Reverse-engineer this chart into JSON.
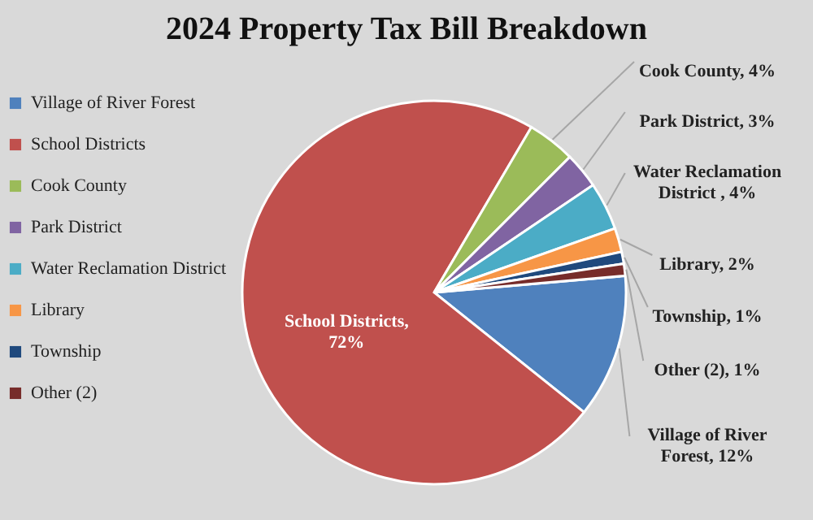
{
  "chart_data": {
    "type": "pie",
    "title": "2024 Property Tax Bill Breakdown",
    "categories": [
      "Village of River Forest",
      "School Districts",
      "Cook County",
      "Park District",
      "Water Reclamation District",
      "Library",
      "Township",
      "Other (2)"
    ],
    "values": [
      12,
      72,
      4,
      3,
      4,
      2,
      1,
      1
    ],
    "value_labels": [
      "Village of River Forest, 12%",
      "School Districts, 72%",
      "Cook County, 4%",
      "Park District, 3%",
      "Water Reclamation District , 4%",
      "Library, 2%",
      "Township, 1%",
      "Other (2), 1%"
    ],
    "colors": [
      "#4f81bd",
      "#c0504d",
      "#9bbb59",
      "#8064a2",
      "#4bacc6",
      "#f79646",
      "#1f497d",
      "#772c2a"
    ],
    "legend": "left"
  }
}
